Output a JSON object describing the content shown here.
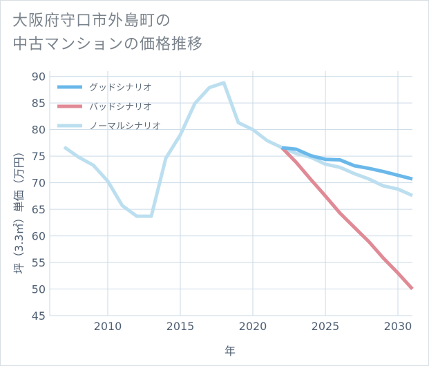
{
  "title_lines": [
    "大阪府守口市外島町の",
    "中古マンションの価格推移"
  ],
  "colors": {
    "good": "#6ab8ea",
    "bad": "#e08a96",
    "normal": "#bcdff0",
    "grid": "#c9d9e6",
    "axis_text": "#4f5f73"
  },
  "chart_data": {
    "type": "line",
    "xlabel": "年",
    "ylabel": "坪（3.3㎡）単価（万円）",
    "xlim": [
      2006,
      2031
    ],
    "ylim": [
      45,
      91
    ],
    "x_ticks": [
      2010,
      2015,
      2020,
      2025,
      2030
    ],
    "y_ticks": [
      45,
      50,
      55,
      60,
      65,
      70,
      75,
      80,
      85,
      90
    ],
    "grid": true,
    "legend_position": "top-left",
    "series": [
      {
        "name": "グッドシナリオ",
        "color_key": "good",
        "x": [
          2022,
          2023,
          2024,
          2025,
          2026,
          2027,
          2028,
          2029,
          2030,
          2031
        ],
        "y": [
          76.6,
          76.3,
          75.1,
          74.4,
          74.3,
          73.2,
          72.7,
          72.1,
          71.4,
          70.7
        ]
      },
      {
        "name": "バッドシナリオ",
        "color_key": "bad",
        "x": [
          2022,
          2023,
          2024,
          2025,
          2026,
          2027,
          2028,
          2029,
          2030,
          2031
        ],
        "y": [
          76.6,
          73.8,
          70.6,
          67.5,
          64.3,
          61.6,
          58.9,
          55.8,
          53.0,
          50.0
        ]
      },
      {
        "name": "ノーマルシナリオ",
        "color_key": "normal",
        "x": [
          2007,
          2008,
          2009,
          2010,
          2011,
          2012,
          2013,
          2014,
          2015,
          2016,
          2017,
          2018,
          2019,
          2020,
          2021,
          2022,
          2023,
          2024,
          2025,
          2026,
          2027,
          2028,
          2029,
          2030,
          2031
        ],
        "y": [
          76.7,
          74.8,
          73.3,
          70.3,
          65.7,
          63.7,
          63.7,
          74.6,
          79.0,
          84.9,
          87.9,
          88.8,
          81.3,
          80.0,
          77.9,
          76.6,
          75.5,
          74.8,
          73.5,
          72.9,
          71.7,
          70.7,
          69.4,
          68.8,
          67.6
        ]
      }
    ]
  }
}
